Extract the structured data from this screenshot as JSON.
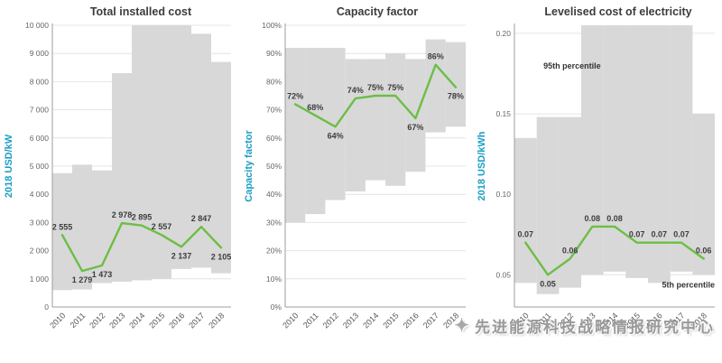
{
  "watermark": {
    "text": "先进能源科技战略情报研究中心",
    "icon": "star-sparkle-icon"
  },
  "chart_data": [
    {
      "type": "line",
      "title": "Total installed cost",
      "ylabel": "2018 USD/kW",
      "categories": [
        "2010",
        "2011",
        "2012",
        "2013",
        "2014",
        "2015",
        "2016",
        "2017",
        "2018"
      ],
      "values": [
        2555,
        1279,
        1473,
        2978,
        2895,
        2557,
        2137,
        2847,
        2105
      ],
      "value_labels": [
        "2 555",
        "1 279",
        "1 473",
        "2 978",
        "2 895",
        "2 557",
        "2 137",
        "2 847",
        "2 105"
      ],
      "label_pos": [
        "above",
        "below",
        "below",
        "above",
        "above",
        "above",
        "below",
        "above",
        "below"
      ],
      "band_low": [
        600,
        620,
        850,
        900,
        950,
        1000,
        1350,
        1400,
        1200
      ],
      "band_high": [
        4750,
        5050,
        4850,
        8300,
        10000,
        10000,
        10000,
        9700,
        8700
      ],
      "ylim": [
        0,
        10000
      ],
      "yticks": [
        0,
        1000,
        2000,
        3000,
        4000,
        5000,
        6000,
        7000,
        8000,
        9000,
        10000
      ],
      "ytick_labels": [
        "0",
        "1 000",
        "2 000",
        "3 000",
        "4 000",
        "5 000",
        "6 000",
        "7 000",
        "8 000",
        "9 000",
        "10 000"
      ],
      "line_color": "#6CBE45",
      "band_color": "#D8D8D8",
      "axis_label_color": "#1B9EC4",
      "annotations": []
    },
    {
      "type": "line",
      "title": "Capacity factor",
      "ylabel": "Capacity factor",
      "categories": [
        "2010",
        "2011",
        "2012",
        "2013",
        "2014",
        "2015",
        "2016",
        "2017",
        "2018"
      ],
      "values": [
        72,
        68,
        64,
        74,
        75,
        75,
        67,
        86,
        78
      ],
      "value_labels": [
        "72%",
        "68%",
        "64%",
        "74%",
        "75%",
        "75%",
        "67%",
        "86%",
        "78%"
      ],
      "label_pos": [
        "above",
        "above",
        "below",
        "above",
        "above",
        "above",
        "below",
        "above",
        "below"
      ],
      "band_low": [
        30,
        33,
        38,
        41,
        45,
        43,
        48,
        62,
        64
      ],
      "band_high": [
        92,
        92,
        92,
        88,
        88,
        90,
        88,
        95,
        94
      ],
      "ylim": [
        0,
        100
      ],
      "yticks": [
        0,
        10,
        20,
        30,
        40,
        50,
        60,
        70,
        80,
        90,
        100
      ],
      "ytick_labels": [
        "0%",
        "10%",
        "20%",
        "30%",
        "40%",
        "50%",
        "60%",
        "70%",
        "80%",
        "90%",
        "100%"
      ],
      "line_color": "#6CBE45",
      "band_color": "#D8D8D8",
      "axis_label_color": "#1B9EC4",
      "annotations": []
    },
    {
      "type": "line",
      "title": "Levelised cost of electricity",
      "ylabel": "2018 USD/kWh",
      "categories": [
        "2010",
        "2011",
        "2012",
        "2013",
        "2014",
        "2015",
        "2016",
        "2017",
        "2018"
      ],
      "values": [
        0.07,
        0.05,
        0.06,
        0.08,
        0.08,
        0.07,
        0.07,
        0.07,
        0.06
      ],
      "value_labels": [
        "0.07",
        "0.05",
        "0.06",
        "0.08",
        "0.08",
        "0.07",
        "0.07",
        "0.07",
        "0.06"
      ],
      "label_pos": [
        "above",
        "below",
        "above",
        "above",
        "above",
        "above",
        "above",
        "above",
        "above"
      ],
      "band_low": [
        0.045,
        0.038,
        0.042,
        0.05,
        0.052,
        0.048,
        0.045,
        0.052,
        0.05
      ],
      "band_high": [
        0.135,
        0.148,
        0.148,
        0.205,
        0.205,
        0.205,
        0.205,
        0.205,
        0.15
      ],
      "ylim": [
        0.03,
        0.205
      ],
      "yticks": [
        0.05,
        0.1,
        0.15,
        0.2
      ],
      "ytick_labels": [
        "0.05",
        "0.10",
        "0.15",
        "0.20"
      ],
      "line_color": "#6CBE45",
      "band_color": "#D8D8D8",
      "axis_label_color": "#1B9EC4",
      "annotations": [
        {
          "text": "95th percentile",
          "x_index": 0.8,
          "y": 0.178,
          "anchor": "start"
        },
        {
          "text": "5th percentile",
          "x_index": 8.5,
          "y": 0.042,
          "anchor": "end"
        }
      ]
    }
  ]
}
